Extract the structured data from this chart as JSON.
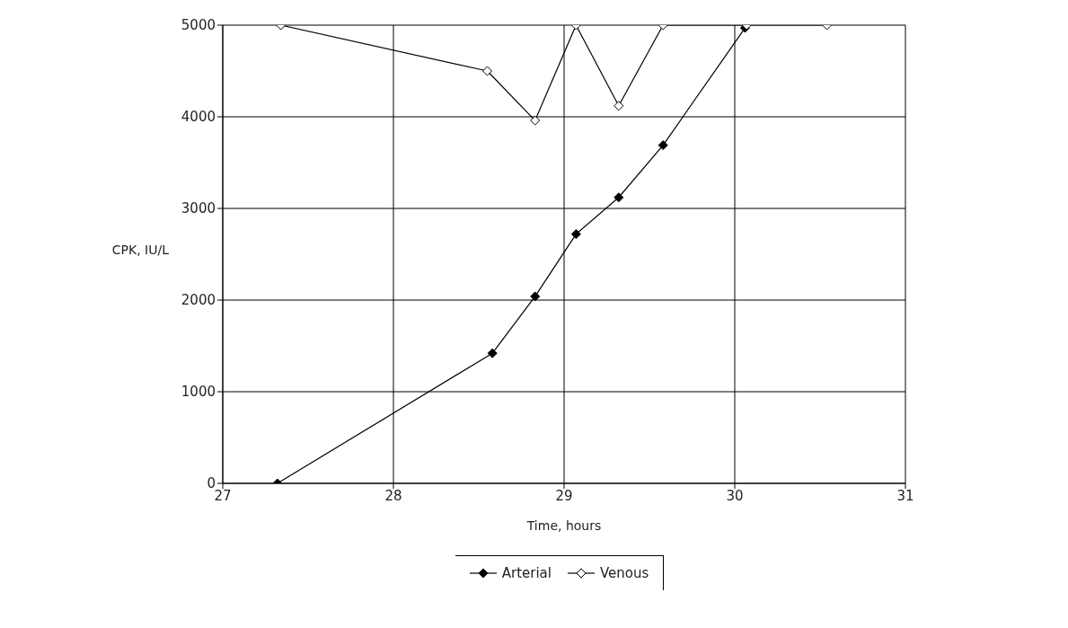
{
  "chart_data": {
    "type": "line",
    "xlabel": "Time, hours",
    "ylabel": "CPK, IU/L",
    "xlim": [
      27,
      31
    ],
    "xticks": [
      27,
      28,
      29,
      30,
      31
    ],
    "ylim": [
      0,
      5000
    ],
    "yticks": [
      0,
      1000,
      2000,
      3000,
      4000,
      5000
    ],
    "grid": true,
    "legend": "bottom",
    "marker": "diamond",
    "line_style": "solid",
    "series": [
      {
        "name": "Arterial",
        "color": "#000000",
        "x": [
          27.32,
          28.58,
          28.83,
          29.07,
          29.32,
          29.58,
          30.06
        ],
        "values": [
          0,
          1420,
          2040,
          2720,
          3120,
          3690,
          4970
        ]
      },
      {
        "name": "Venous",
        "color": "#000000",
        "x": [
          27.34,
          28.55,
          28.83,
          29.07,
          29.32,
          29.58,
          30.07,
          30.54
        ],
        "values": [
          5000,
          4500,
          3960,
          5000,
          4120,
          5000,
          5000,
          5000
        ]
      }
    ]
  }
}
